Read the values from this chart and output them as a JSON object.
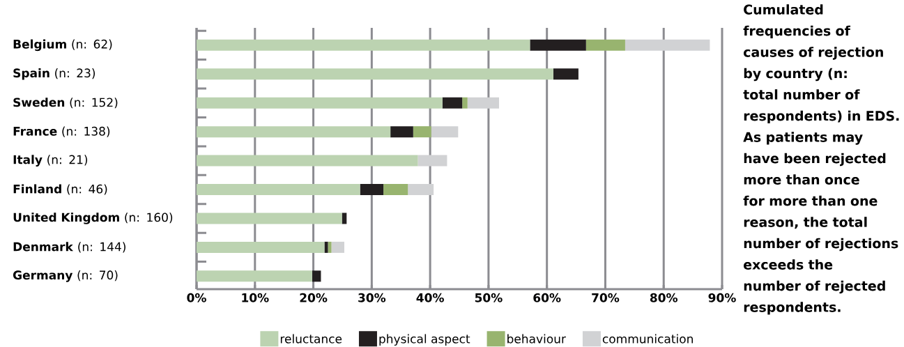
{
  "chart_data": {
    "type": "bar",
    "orientation": "horizontal",
    "stacked": true,
    "categories": [
      "**Belgium** (n: 62)",
      "**Spain** (n: 23)",
      "**Sweden** (n: 152)",
      "**France** (n: 138)",
      "**Italy** (n: 21)",
      "**Finland** (n: 46)",
      "**United Kingdom** (n: 160)",
      "**Denmark** (n: 144)",
      "**Germany** (n: 70)"
    ],
    "series": [
      {
        "name": "reluctance",
        "color": "#bcd3b1",
        "values": [
          57.1,
          61.1,
          42.1,
          33.2,
          37.9,
          28.0,
          24.9,
          21.9,
          19.8
        ]
      },
      {
        "name": "physical aspect",
        "color": "#231f20",
        "values": [
          9.6,
          4.3,
          3.4,
          3.9,
          null,
          4.0,
          0.8,
          0.6,
          1.5
        ]
      },
      {
        "name": "behaviour",
        "color": "#98b46f",
        "values": [
          6.7,
          null,
          0.9,
          3.1,
          null,
          4.2,
          null,
          0.6,
          null
        ]
      },
      {
        "name": "communication",
        "color": "#d1d2d4",
        "values": [
          14.5,
          null,
          5.4,
          4.6,
          5.0,
          4.4,
          null,
          2.2,
          null
        ]
      }
    ],
    "xlim": [
      0,
      90
    ],
    "xticks": [
      {
        "value": 0,
        "label": "0%"
      },
      {
        "value": 10,
        "label": "10%"
      },
      {
        "value": 20,
        "label": "20%"
      },
      {
        "value": 30,
        "label": "30%"
      },
      {
        "value": 40,
        "label": "40%"
      },
      {
        "value": 50,
        "label": "50%"
      },
      {
        "value": 60,
        "label": "60%"
      },
      {
        "value": 70,
        "label": "70%"
      },
      {
        "value": 80,
        "label": "80%"
      },
      {
        "value": 90,
        "label": "90%"
      }
    ],
    "grid": "x",
    "legend": "bottom",
    "annotations": [
      "Cumulated frequencies of causes of rejection by country (n: total number of respondents) in EDS. As patients may have been rejected more than once for more than one reason, the total number of rejections exceeds the number of rejected respondents."
    ]
  }
}
